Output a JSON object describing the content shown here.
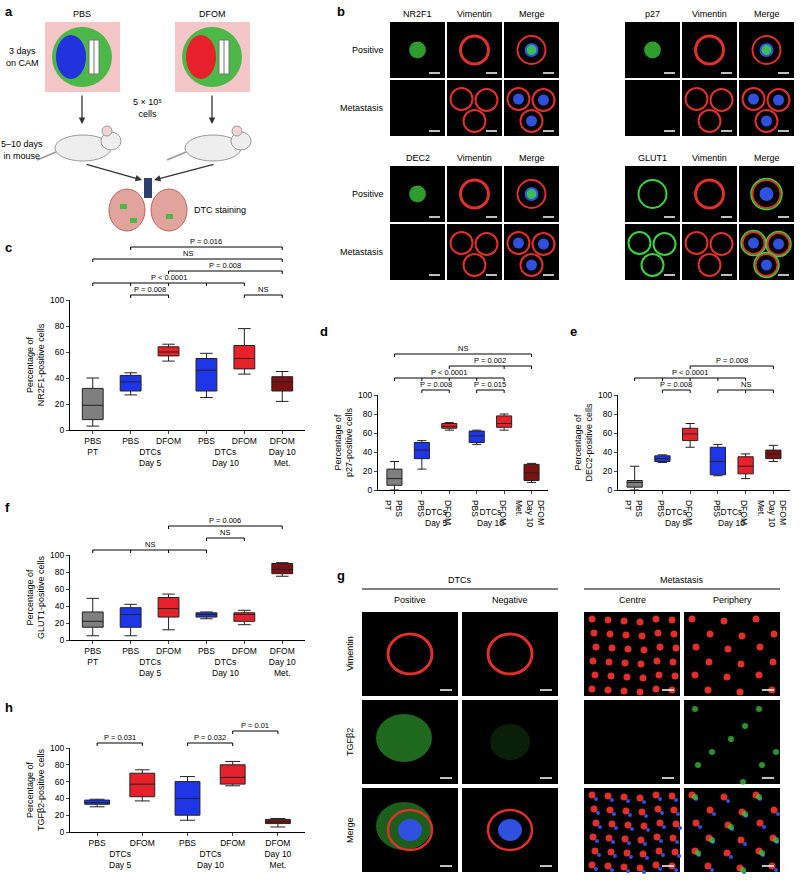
{
  "panels": {
    "a": {
      "panel": "a",
      "conditions": [
        "PBS",
        "DFOM"
      ],
      "steps": [
        "3 days\non CAM",
        "5 × 10⁵\ncells",
        "5–10 days\nin mouse",
        "DTC staining"
      ]
    },
    "b": {
      "panel": "b",
      "rows": [
        "Positive",
        "Metastasis"
      ],
      "groups": [
        {
          "channels": [
            "NR2F1",
            "Vimentin",
            "Merge"
          ]
        },
        {
          "channels": [
            "p27",
            "Vimentin",
            "Merge"
          ]
        },
        {
          "channels": [
            "DEC2",
            "Vimentin",
            "Merge"
          ]
        },
        {
          "channels": [
            "GLUT1",
            "Vimentin",
            "Merge"
          ]
        }
      ]
    },
    "g": {
      "panel": "g",
      "columns": [
        {
          "header": "DTCs",
          "sub": [
            "Positive",
            "Negative"
          ]
        },
        {
          "header": "Metastasis",
          "sub": [
            "Centre",
            "Periphery"
          ]
        }
      ],
      "rows": [
        "Vimentin",
        "TGFβ2",
        "Merge"
      ]
    }
  },
  "chart_data": [
    {
      "type": "box",
      "panel": "c",
      "ylabel": "Percentage of\nNR2F1-positive cells",
      "categories": [
        "PBS\nPT",
        "PBS",
        "DFOM",
        "PBS",
        "DFOM",
        "DFOM\nDay 10\nMet."
      ],
      "groups": [
        {
          "label": "DTCs\nDay 5",
          "idx": [
            1,
            2
          ]
        },
        {
          "label": "DTCs\nDay 10",
          "idx": [
            3,
            4
          ]
        }
      ],
      "min": [
        3,
        27,
        53,
        25,
        43,
        22
      ],
      "q1": [
        8,
        30,
        57,
        30,
        47,
        30
      ],
      "median": [
        19,
        37,
        60,
        46,
        55,
        37
      ],
      "q3": [
        32,
        42,
        64,
        55,
        65,
        41
      ],
      "max": [
        40,
        44,
        66,
        59,
        78,
        45
      ],
      "colors": [
        "#7f7f7f",
        "#1f35e8",
        "#e8202a",
        "#1f35e8",
        "#e8202a",
        "#7b1113"
      ],
      "ylim": [
        0,
        100
      ],
      "yticks": [
        0,
        20,
        40,
        60,
        80,
        100
      ],
      "comparisons": [
        {
          "label": "P = 0.008",
          "idx": [
            1,
            2
          ]
        },
        {
          "label": "NS",
          "idx": [
            4,
            5
          ]
        },
        {
          "label": "P < 0.0001",
          "idx": [
            0,
            1,
            2,
            3,
            4
          ]
        },
        {
          "label": "P = 0.008",
          "idx": [
            2,
            5
          ]
        },
        {
          "label": "NS",
          "idx": [
            0,
            5
          ]
        },
        {
          "label": "P = 0.016",
          "idx": [
            1,
            5
          ]
        }
      ]
    },
    {
      "type": "box",
      "panel": "d",
      "ylabel": "Percentage of\np27-positive cells",
      "categories": [
        "PBS\nPT",
        "PBS",
        "DFOM",
        "PBS",
        "DFOM",
        "DFOM\nDay 10\nMet."
      ],
      "groups": [
        {
          "label": "DTCs\nDay 5",
          "idx": [
            1,
            2
          ]
        },
        {
          "label": "DTCs\nDay 10",
          "idx": [
            3,
            4
          ]
        }
      ],
      "min": [
        0,
        22,
        63,
        48,
        63,
        8
      ],
      "q1": [
        5,
        33,
        65,
        50,
        66,
        10
      ],
      "median": [
        12,
        42,
        67,
        57,
        70,
        18
      ],
      "q3": [
        22,
        50,
        70,
        62,
        78,
        27
      ],
      "max": [
        30,
        52,
        71,
        63,
        80,
        28
      ],
      "colors": [
        "#7f7f7f",
        "#1f35e8",
        "#e8202a",
        "#1f35e8",
        "#e8202a",
        "#7b1113"
      ],
      "ylim": [
        0,
        100
      ],
      "yticks": [
        0,
        20,
        40,
        60,
        80,
        100
      ],
      "comparisons": [
        {
          "label": "P = 0.008",
          "idx": [
            1,
            2
          ]
        },
        {
          "label": "P = 0.015",
          "idx": [
            3,
            4
          ]
        },
        {
          "label": "P < 0.0001",
          "idx": [
            0,
            1,
            2,
            3,
            4
          ]
        },
        {
          "label": "P = 0.002",
          "idx": [
            2,
            4,
            5
          ]
        },
        {
          "label": "NS",
          "idx": [
            0,
            5
          ]
        }
      ]
    },
    {
      "type": "box",
      "panel": "e",
      "ylabel": "Percentage of\nDEC2-positive cells",
      "categories": [
        "PBS\nPT",
        "PBS",
        "DFOM",
        "PBS",
        "DFOM",
        "DFOM\nDay 10\nMet."
      ],
      "groups": [
        {
          "label": "DTCs\nDay 5",
          "idx": [
            1,
            2
          ]
        },
        {
          "label": "DTCs\nDay 10",
          "idx": [
            3,
            4
          ]
        }
      ],
      "min": [
        0,
        29,
        45,
        15,
        12,
        30
      ],
      "q1": [
        3,
        30,
        52,
        16,
        17,
        33
      ],
      "median": [
        8,
        33,
        59,
        30,
        25,
        38
      ],
      "q3": [
        10,
        36,
        65,
        45,
        35,
        42
      ],
      "max": [
        25,
        37,
        70,
        48,
        38,
        47
      ],
      "colors": [
        "#7f7f7f",
        "#1f35e8",
        "#e8202a",
        "#1f35e8",
        "#e8202a",
        "#7b1113"
      ],
      "ylim": [
        0,
        100
      ],
      "yticks": [
        0,
        20,
        40,
        60,
        80,
        100
      ],
      "comparisons": [
        {
          "label": "P = 0.008",
          "idx": [
            1,
            2
          ]
        },
        {
          "label": "NS",
          "idx": [
            3,
            4,
            5
          ]
        },
        {
          "label": "P < 0.0001",
          "idx": [
            0,
            1,
            2,
            3,
            4
          ]
        },
        {
          "label": "P = 0.008",
          "idx": [
            2,
            5
          ]
        }
      ]
    },
    {
      "type": "box",
      "panel": "f",
      "ylabel": "Percentage of\nGLUT1-positive cells",
      "categories": [
        "PBS\nPT",
        "PBS",
        "DFOM",
        "PBS",
        "DFOM",
        "DFOM\nDay 10\nMet."
      ],
      "groups": [
        {
          "label": "DTCs\nDay 5",
          "idx": [
            1,
            2
          ]
        },
        {
          "label": "DTCs\nDay 10",
          "idx": [
            3,
            4
          ]
        }
      ],
      "min": [
        5,
        5,
        12,
        25,
        18,
        75
      ],
      "q1": [
        15,
        15,
        27,
        27,
        22,
        78
      ],
      "median": [
        22,
        30,
        37,
        30,
        30,
        83
      ],
      "q3": [
        33,
        38,
        50,
        32,
        32,
        90
      ],
      "max": [
        49,
        42,
        54,
        33,
        35,
        91
      ],
      "colors": [
        "#7f7f7f",
        "#1f35e8",
        "#e8202a",
        "#1f35e8",
        "#e8202a",
        "#7b1113"
      ],
      "ylim": [
        0,
        100
      ],
      "yticks": [
        0,
        20,
        40,
        60,
        80,
        100
      ],
      "comparisons": [
        {
          "label": "NS",
          "idx": [
            0,
            1,
            2,
            3
          ]
        },
        {
          "label": "NS",
          "idx": [
            3,
            4
          ]
        },
        {
          "label": "P = 0.006",
          "idx": [
            2,
            5
          ]
        }
      ]
    },
    {
      "type": "box",
      "panel": "h",
      "ylabel": "Percentage of\nTGFβ2-positive cells",
      "categories": [
        "PBS",
        "DFOM",
        "PBS",
        "DFOM",
        "DFOM\nDay 10\nMet."
      ],
      "groups": [
        {
          "label": "DTCs\nDay 5",
          "idx": [
            0,
            1
          ]
        },
        {
          "label": "DTCs\nDay 10",
          "idx": [
            2,
            3
          ]
        }
      ],
      "min": [
        30,
        37,
        14,
        55,
        6
      ],
      "q1": [
        33,
        42,
        20,
        57,
        10
      ],
      "median": [
        35,
        57,
        40,
        65,
        12
      ],
      "q3": [
        38,
        70,
        60,
        80,
        15
      ],
      "max": [
        39,
        74,
        66,
        84,
        16
      ],
      "colors": [
        "#1f35e8",
        "#e8202a",
        "#1f35e8",
        "#e8202a",
        "#7b1113"
      ],
      "ylim": [
        0,
        100
      ],
      "yticks": [
        0,
        20,
        40,
        60,
        80,
        100
      ],
      "comparisons": [
        {
          "label": "P = 0.031",
          "idx": [
            0,
            1
          ]
        },
        {
          "label": "P = 0.032",
          "idx": [
            2,
            3
          ]
        },
        {
          "label": "P = 0.01",
          "idx": [
            3,
            4
          ]
        }
      ]
    }
  ]
}
